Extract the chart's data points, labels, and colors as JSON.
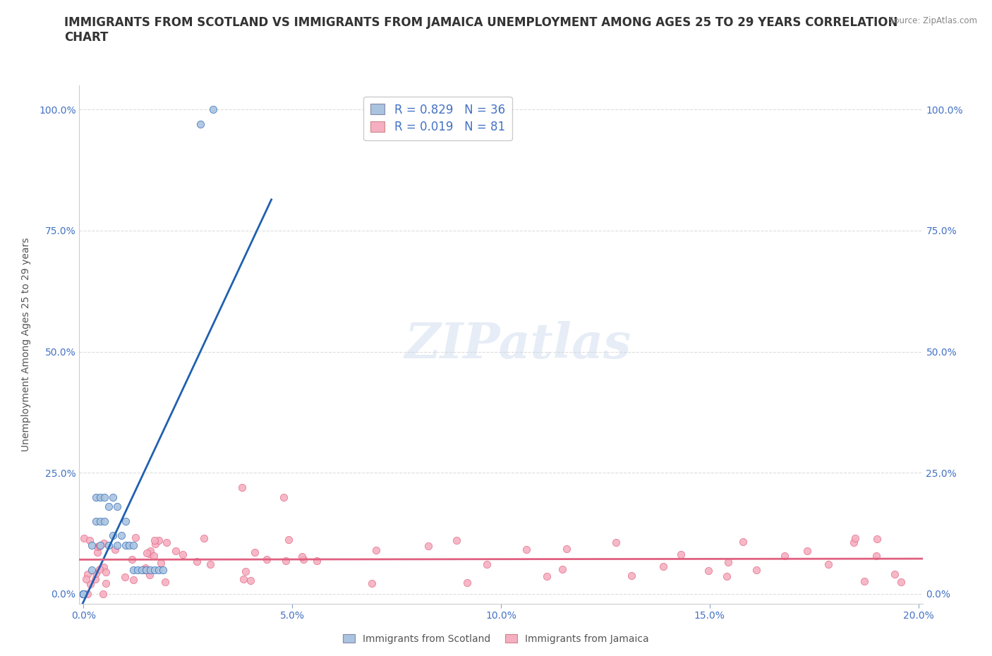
{
  "title": "IMMIGRANTS FROM SCOTLAND VS IMMIGRANTS FROM JAMAICA UNEMPLOYMENT AMONG AGES 25 TO 29 YEARS CORRELATION\nCHART",
  "source": "Source: ZipAtlas.com",
  "ylabel": "Unemployment Among Ages 25 to 29 years",
  "watermark": "ZIPatlas",
  "xlim": [
    -0.001,
    0.201
  ],
  "ylim": [
    -0.02,
    1.05
  ],
  "scotland_color": "#aac4e0",
  "jamaica_color": "#f5afc0",
  "scotland_line_color": "#2060b0",
  "jamaica_line_color": "#e06080",
  "legend_scotland_label": "R = 0.829   N = 36",
  "legend_jamaica_label": "R = 0.019   N = 81",
  "background_color": "#ffffff",
  "grid_color": "#dddddd",
  "title_fontsize": 12,
  "axis_label_fontsize": 10,
  "tick_fontsize": 10,
  "legend_fontsize": 12
}
